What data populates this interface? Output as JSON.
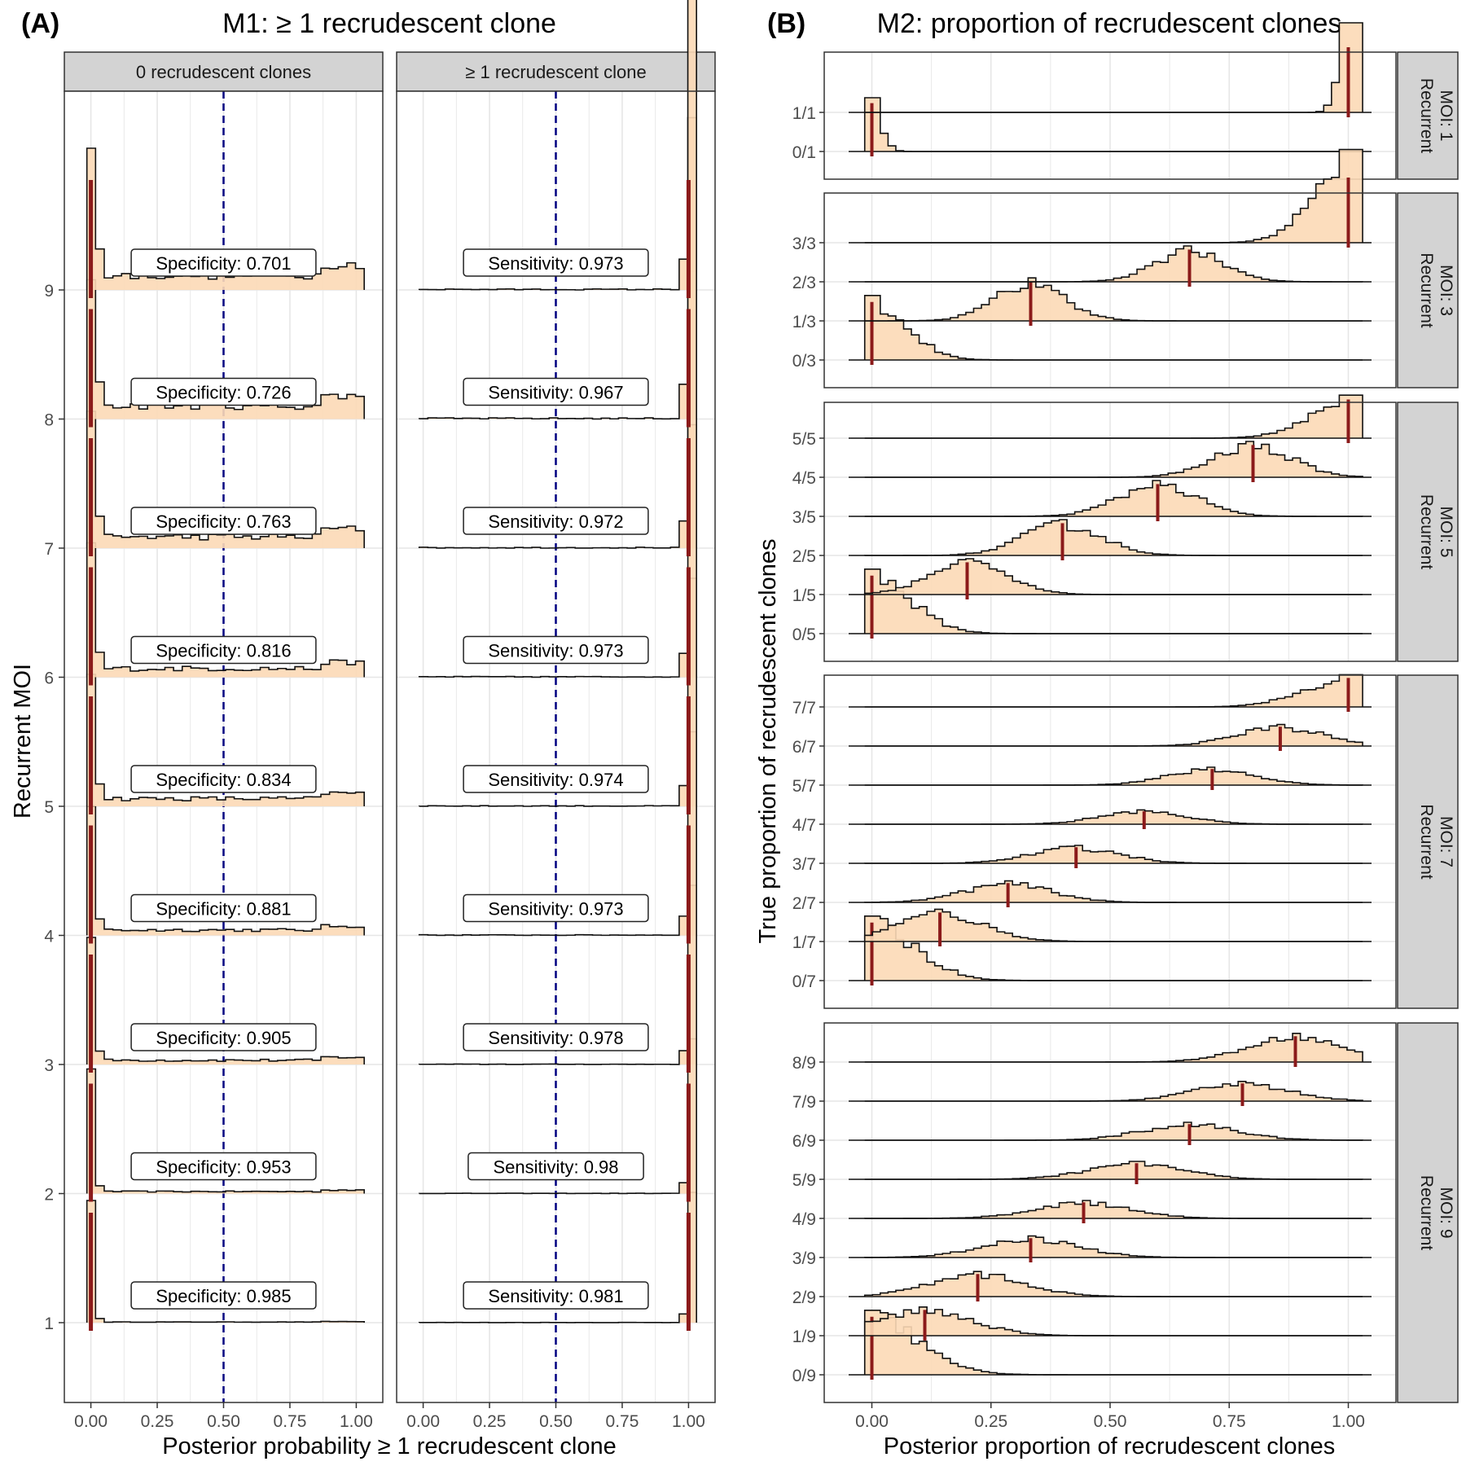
{
  "figure": {
    "panel_a": {
      "tag": "(A)",
      "title": "M1: ≥ 1 recrudescent clone"
    },
    "panel_b": {
      "tag": "(B)",
      "title": "M2: proportion of recrudescent clones"
    }
  },
  "colors": {
    "fill": "#FCD9B6",
    "outline": "#111111",
    "median": "#8B1A1A",
    "threshold": "#000080",
    "strip": "#D3D3D3",
    "grid": "#E6E6E6"
  },
  "chart_data": [
    {
      "type": "histogram-ridgeline",
      "title": "M1: ≥ 1 recrudescent clone",
      "xlabel": "Posterior probability ≥ 1 recrudescent clone",
      "ylabel": "Recurrent MOI",
      "xlim": [
        -0.1,
        1.1
      ],
      "xticks": [
        "0.00",
        "0.25",
        "0.50",
        "0.75",
        "1.00"
      ],
      "yticks": [
        "1",
        "2",
        "3",
        "4",
        "5",
        "6",
        "7",
        "8",
        "9"
      ],
      "threshold": 0.5,
      "grid": true,
      "facets": [
        {
          "strip": "0 recrudescent clones",
          "metric": "Specificity",
          "rows": [
            {
              "moi": 1,
              "value": "0.985"
            },
            {
              "moi": 2,
              "value": "0.953"
            },
            {
              "moi": 3,
              "value": "0.905"
            },
            {
              "moi": 4,
              "value": "0.881"
            },
            {
              "moi": 5,
              "value": "0.834"
            },
            {
              "moi": 6,
              "value": "0.816"
            },
            {
              "moi": 7,
              "value": "0.763"
            },
            {
              "moi": 8,
              "value": "0.726"
            },
            {
              "moi": 9,
              "value": "0.701"
            }
          ]
        },
        {
          "strip": "≥ 1 recrudescent clone",
          "metric": "Sensitivity",
          "rows": [
            {
              "moi": 1,
              "value": "0.981"
            },
            {
              "moi": 2,
              "value": "0.98"
            },
            {
              "moi": 3,
              "value": "0.978"
            },
            {
              "moi": 4,
              "value": "0.973"
            },
            {
              "moi": 5,
              "value": "0.974"
            },
            {
              "moi": 6,
              "value": "0.973"
            },
            {
              "moi": 7,
              "value": "0.972"
            },
            {
              "moi": 8,
              "value": "0.967"
            },
            {
              "moi": 9,
              "value": "0.973"
            }
          ]
        }
      ]
    },
    {
      "type": "histogram-ridgeline",
      "title": "M2: proportion of recrudescent clones",
      "xlabel": "Posterior proportion of recrudescent clones",
      "ylabel": "True proportion of recrudescent clones",
      "xlim": [
        -0.1,
        1.1
      ],
      "xticks": [
        "0.00",
        "0.25",
        "0.50",
        "0.75",
        "1.00"
      ],
      "grid": true,
      "facets": [
        {
          "strip": [
            "Recurrent",
            "MOI: 1"
          ],
          "moi": 1,
          "rows": [
            "0/1",
            "1/1"
          ],
          "peak": [
            1.5,
            2.5
          ]
        },
        {
          "strip": [
            "Recurrent",
            "MOI: 3"
          ],
          "moi": 3,
          "rows": [
            "0/3",
            "1/3",
            "2/3",
            "3/3"
          ],
          "peak": [
            1.8,
            1.2,
            1.0,
            2.6
          ]
        },
        {
          "strip": [
            "Recurrent",
            "MOI: 5"
          ],
          "moi": 5,
          "rows": [
            "0/5",
            "1/5",
            "2/5",
            "3/5",
            "4/5",
            "5/5"
          ],
          "peak": [
            1.8,
            1.0,
            1.0,
            1.0,
            1.0,
            1.2
          ]
        },
        {
          "strip": [
            "Recurrent",
            "MOI: 7"
          ],
          "moi": 7,
          "rows": [
            "0/7",
            "1/7",
            "2/7",
            "3/7",
            "4/7",
            "5/7",
            "6/7",
            "7/7"
          ],
          "peak": [
            1.8,
            0.9,
            0.6,
            0.5,
            0.4,
            0.5,
            0.6,
            0.9
          ]
        },
        {
          "strip": [
            "Recurrent",
            "MOI: 9"
          ],
          "moi": 9,
          "rows": [
            "0/9",
            "1/9",
            "2/9",
            "3/9",
            "4/9",
            "5/9",
            "6/9",
            "7/9",
            "8/9"
          ],
          "peak": [
            1.8,
            0.8,
            0.7,
            0.6,
            0.5,
            0.5,
            0.5,
            0.55,
            0.8
          ]
        }
      ]
    }
  ]
}
